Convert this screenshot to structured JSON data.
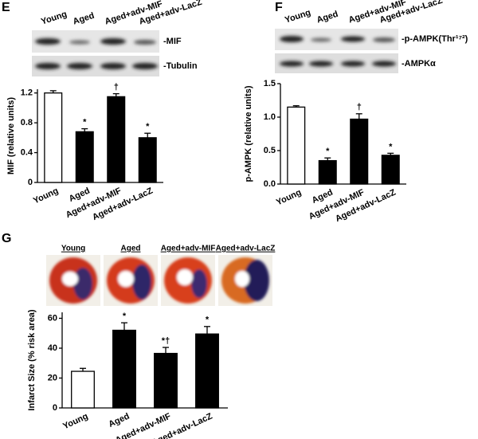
{
  "chart_data": [
    {
      "type": "bar",
      "panel_label": "E",
      "blot_lanes": [
        "Young",
        "Aged",
        "Aged+adv-MIF",
        "Aged+adv-LacZ"
      ],
      "blot_labels": [
        "-MIF",
        "-Tubulin"
      ],
      "y_label": "MIF (relative units)",
      "categories": [
        "Young",
        "Aged",
        "Aged+adv-MIF",
        "Aged+adv-LacZ"
      ],
      "values": [
        1.2,
        0.68,
        1.15,
        0.6
      ],
      "errors": [
        0.03,
        0.04,
        0.04,
        0.06
      ],
      "annotations": [
        null,
        "*",
        "†",
        "*"
      ],
      "colors": [
        "#ffffff",
        "#000000",
        "#000000",
        "#000000"
      ],
      "ylim": [
        0,
        1.25
      ],
      "yticks": [
        0,
        0.4,
        0.8,
        1.2
      ]
    },
    {
      "type": "bar",
      "panel_label": "F",
      "blot_lanes": [
        "Young",
        "Aged",
        "Aged+adv-MIF",
        "Aged+adv-LacZ"
      ],
      "blot_labels": [
        "-p-AMPK(Thr¹⁷²)",
        "-AMPKα"
      ],
      "y_label": "p-AMPK (relative units)",
      "categories": [
        "Young",
        "Aged",
        "Aged+adv-MIF",
        "Aged+adv-LacZ"
      ],
      "values": [
        1.15,
        0.35,
        0.97,
        0.43
      ],
      "errors": [
        0.02,
        0.04,
        0.08,
        0.03
      ],
      "annotations": [
        null,
        "*",
        "†",
        "*"
      ],
      "colors": [
        "#ffffff",
        "#000000",
        "#000000",
        "#000000"
      ],
      "ylim": [
        0,
        1.5
      ],
      "yticks": [
        {
          "value": 0,
          "label": "0.0"
        },
        {
          "value": 0.5,
          "label": "0.5"
        },
        {
          "value": 1,
          "label": "1.0"
        },
        {
          "value": 1.5,
          "label": "1.5"
        }
      ]
    },
    {
      "type": "bar",
      "panel_label": "G",
      "image_labels": [
        "Young",
        "Aged",
        "Aged+adv-MIF",
        "Aged+adv-LacZ"
      ],
      "y_label": "Infarct Size (% risk area)",
      "categories": [
        "Young",
        "Aged",
        "Aged+adv-MIF",
        "Aged+adv-LacZ"
      ],
      "values": [
        24.5,
        52,
        36.5,
        49.5
      ],
      "errors": [
        2,
        5,
        4,
        5
      ],
      "annotations": [
        null,
        "*",
        "*†",
        "*"
      ],
      "colors": [
        "#ffffff",
        "#000000",
        "#000000",
        "#000000"
      ],
      "ylim": [
        0,
        64
      ],
      "yticks": [
        0,
        20,
        40,
        60
      ]
    }
  ]
}
